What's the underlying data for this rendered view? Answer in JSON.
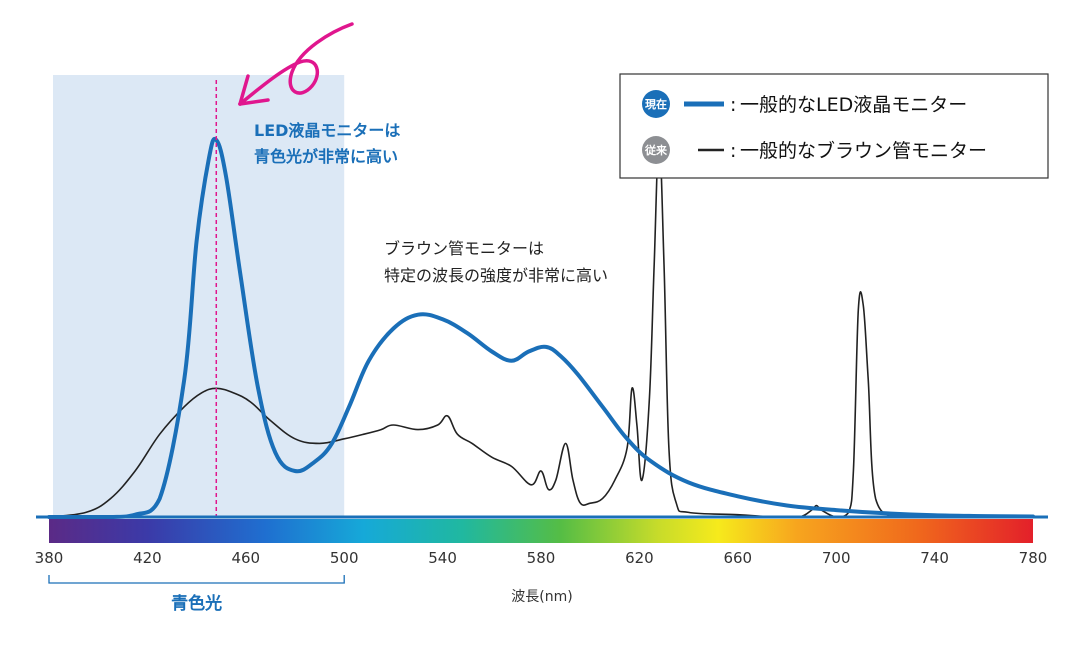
{
  "chart_data": {
    "type": "line",
    "xlabel": "波長(nm)",
    "x_ticks": [
      380,
      420,
      460,
      500,
      540,
      580,
      620,
      660,
      700,
      740,
      780
    ],
    "xlim": [
      380,
      780
    ],
    "grid": false,
    "legend_position": "top-right",
    "highlight_band": {
      "from": 380,
      "to": 500,
      "label": "青色光"
    },
    "marker_line_x": 448,
    "series": [
      {
        "name": "一般的なLED液晶モニター",
        "badge": "現在",
        "color": "#1a6fb8",
        "x": [
          380,
          405,
          415,
          425,
          435,
          440,
          445,
          448,
          452,
          458,
          465,
          472,
          480,
          488,
          495,
          502,
          510,
          520,
          530,
          540,
          550,
          560,
          568,
          575,
          582,
          588,
          595,
          605,
          615,
          625,
          640,
          660,
          680,
          700,
          720,
          740,
          760,
          780
        ],
        "y": [
          0,
          0,
          0.5,
          4,
          30,
          60,
          78,
          82,
          74,
          52,
          28,
          14,
          10,
          12,
          16,
          24,
          34,
          41,
          44,
          43,
          40,
          36,
          34,
          36,
          37,
          35,
          31,
          24,
          17,
          12,
          7.5,
          4.5,
          2.5,
          1.5,
          0.8,
          0.4,
          0.2,
          0.1
        ]
      },
      {
        "name": "一般的なブラウン管モニター",
        "badge": "従来",
        "color": "#222222",
        "x": [
          380,
          395,
          405,
          415,
          425,
          435,
          442,
          448,
          455,
          462,
          470,
          480,
          490,
          500,
          508,
          515,
          520,
          530,
          538,
          542,
          546,
          552,
          560,
          568,
          576,
          580,
          583,
          586,
          590,
          593,
          596,
          600,
          605,
          610,
          615,
          617,
          619,
          621,
          624,
          626,
          628,
          630,
          632,
          635,
          640,
          660,
          675,
          685,
          690,
          692,
          694,
          700,
          705,
          707,
          709,
          711,
          713,
          716,
          725,
          740,
          780
        ],
        "y": [
          0,
          1,
          4,
          10,
          18,
          24,
          27,
          28,
          27,
          25,
          21,
          17,
          16,
          17,
          18,
          19,
          20,
          19,
          20,
          22,
          18,
          16,
          13,
          11,
          7,
          10,
          6,
          8,
          16,
          8,
          3,
          3,
          4,
          8,
          15,
          28,
          20,
          8,
          25,
          55,
          82,
          55,
          15,
          3,
          1,
          0.5,
          0,
          0,
          1.5,
          2.5,
          1.5,
          0,
          1,
          10,
          45,
          46,
          30,
          4,
          0,
          0,
          0
        ]
      }
    ],
    "annotations": [
      {
        "text": "LED液晶モニターは",
        "series": "led"
      },
      {
        "text": "青色光が非常に高い",
        "series": "led"
      },
      {
        "text": "ブラウン管モニターは",
        "series": "crt"
      },
      {
        "text": "特定の波長の強度が非常に高い",
        "series": "crt"
      }
    ]
  }
}
